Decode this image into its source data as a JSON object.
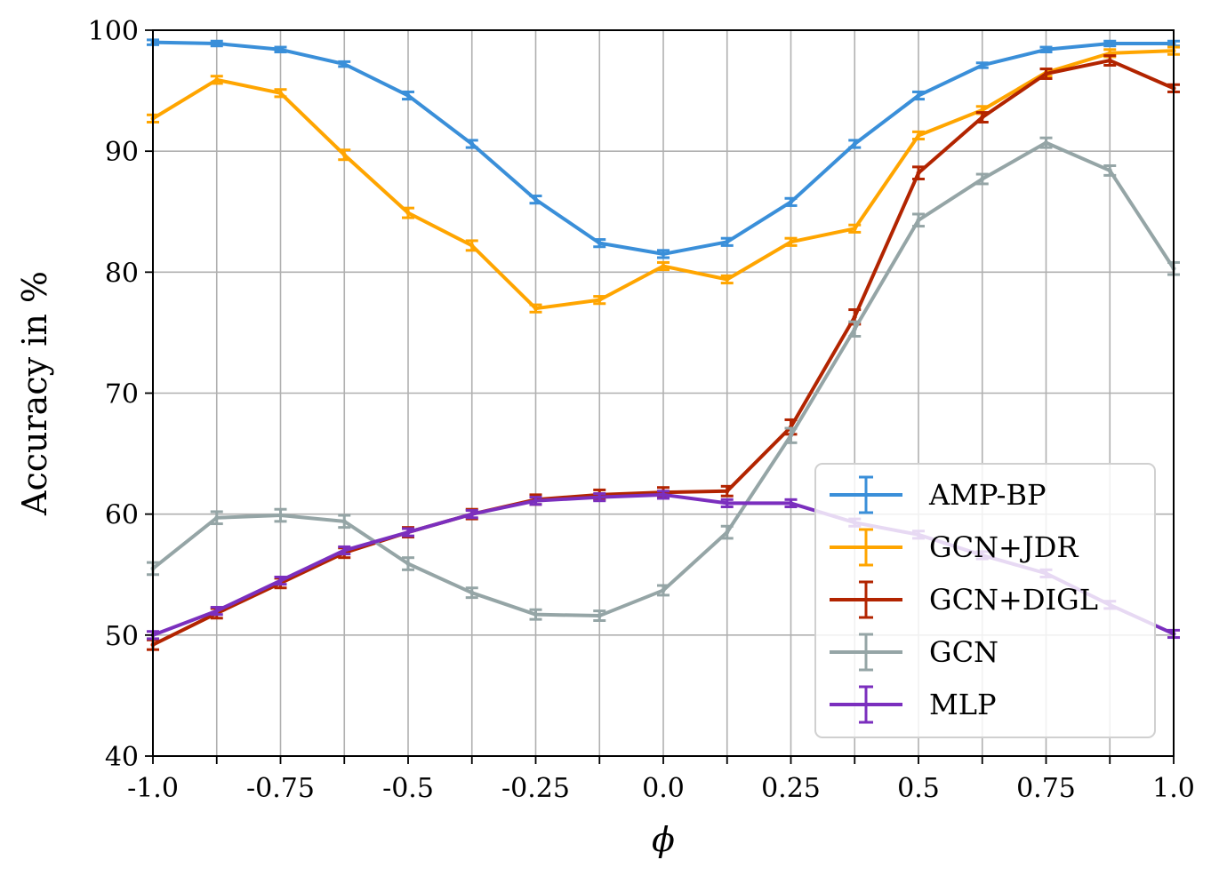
{
  "chart_data": {
    "type": "line",
    "title": "",
    "xlabel": "ϕ",
    "ylabel": "Accuracy in %",
    "xlim": [
      -1.0,
      1.0
    ],
    "ylim": [
      40,
      100
    ],
    "grid": true,
    "legend_position": "lower-right",
    "x": [
      -1.0,
      -0.875,
      -0.75,
      -0.625,
      -0.5,
      -0.375,
      -0.25,
      -0.125,
      0.0,
      0.125,
      0.25,
      0.375,
      0.5,
      0.625,
      0.75,
      0.875,
      1.0
    ],
    "x_ticks": [
      -1.0,
      -0.875,
      -0.75,
      -0.625,
      -0.5,
      -0.375,
      -0.25,
      -0.125,
      0.0,
      0.125,
      0.25,
      0.375,
      0.5,
      0.625,
      0.75,
      0.875,
      1.0
    ],
    "x_tick_labels": [
      {
        "value": -1.0,
        "label": "-1.0"
      },
      {
        "value": -0.75,
        "label": "-0.75"
      },
      {
        "value": -0.5,
        "label": "-0.5"
      },
      {
        "value": -0.25,
        "label": "-0.25"
      },
      {
        "value": 0.0,
        "label": "0.0"
      },
      {
        "value": 0.25,
        "label": "0.25"
      },
      {
        "value": 0.5,
        "label": "0.5"
      },
      {
        "value": 0.75,
        "label": "0.75"
      },
      {
        "value": 1.0,
        "label": "1.0"
      }
    ],
    "y_ticks": [
      {
        "value": 40,
        "label": "40"
      },
      {
        "value": 50,
        "label": "50"
      },
      {
        "value": 60,
        "label": "60"
      },
      {
        "value": 70,
        "label": "70"
      },
      {
        "value": 80,
        "label": "80"
      },
      {
        "value": 90,
        "label": "90"
      },
      {
        "value": 100,
        "label": "100"
      }
    ],
    "series": [
      {
        "name": "AMP-BP",
        "color": "#3a8fd9",
        "values": [
          99.0,
          98.9,
          98.4,
          97.2,
          94.6,
          90.6,
          86.0,
          82.4,
          81.5,
          82.5,
          85.8,
          90.6,
          94.6,
          97.1,
          98.4,
          98.9,
          98.9
        ],
        "errors": [
          0.2,
          0.2,
          0.2,
          0.2,
          0.3,
          0.3,
          0.3,
          0.3,
          0.3,
          0.3,
          0.3,
          0.3,
          0.3,
          0.2,
          0.2,
          0.2,
          0.2
        ]
      },
      {
        "name": "GCN+JDR",
        "color": "#ffa500",
        "values": [
          92.7,
          95.9,
          94.8,
          89.7,
          84.9,
          82.2,
          77.0,
          77.7,
          80.5,
          79.4,
          82.5,
          83.6,
          91.3,
          93.4,
          96.5,
          98.1,
          98.3
        ],
        "errors": [
          0.3,
          0.3,
          0.3,
          0.4,
          0.4,
          0.4,
          0.3,
          0.3,
          0.3,
          0.3,
          0.3,
          0.3,
          0.3,
          0.3,
          0.3,
          0.3,
          0.3
        ]
      },
      {
        "name": "GCN+DIGL",
        "color": "#b22400",
        "values": [
          49.2,
          51.8,
          54.3,
          56.8,
          58.5,
          60.0,
          61.2,
          61.6,
          61.8,
          61.9,
          67.2,
          76.3,
          88.2,
          92.8,
          96.4,
          97.5,
          95.2
        ],
        "errors": [
          0.4,
          0.4,
          0.4,
          0.4,
          0.4,
          0.4,
          0.4,
          0.4,
          0.4,
          0.4,
          0.6,
          0.6,
          0.5,
          0.4,
          0.4,
          0.4,
          0.3
        ]
      },
      {
        "name": "GCN",
        "color": "#95a5a6",
        "values": [
          55.5,
          59.7,
          59.9,
          59.4,
          55.9,
          53.5,
          51.7,
          51.6,
          53.7,
          58.5,
          66.5,
          75.3,
          84.3,
          87.7,
          90.7,
          88.4,
          80.3
        ],
        "errors": [
          0.5,
          0.5,
          0.5,
          0.5,
          0.5,
          0.4,
          0.4,
          0.4,
          0.4,
          0.5,
          0.6,
          0.6,
          0.5,
          0.4,
          0.4,
          0.4,
          0.5
        ]
      },
      {
        "name": "MLP",
        "color": "#7b2fbe",
        "values": [
          50.0,
          52.0,
          54.5,
          57.0,
          58.5,
          60.0,
          61.1,
          61.4,
          61.6,
          60.9,
          60.9,
          59.3,
          58.3,
          56.6,
          55.1,
          52.5,
          50.1
        ],
        "errors": [
          0.3,
          0.3,
          0.3,
          0.3,
          0.3,
          0.3,
          0.3,
          0.3,
          0.3,
          0.3,
          0.3,
          0.3,
          0.3,
          0.3,
          0.3,
          0.3,
          0.3
        ]
      }
    ]
  }
}
